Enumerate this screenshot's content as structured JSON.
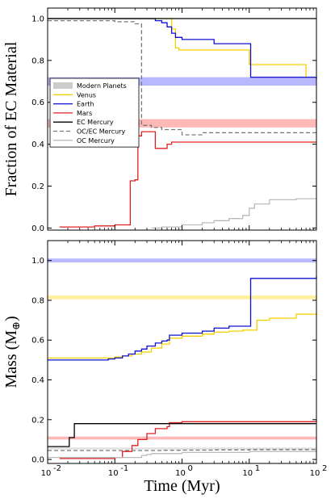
{
  "chart_data": [
    {
      "type": "line",
      "ylabel": "Fraction of EC Material",
      "xlabel": "",
      "xscale": "log",
      "xlim": [
        0.01,
        100
      ],
      "ylim": [
        -0.01,
        1.05
      ],
      "yticks": [
        "0.0",
        "0.2",
        "0.4",
        "0.6",
        "0.8",
        "1.0"
      ],
      "ytick_values": [
        0.0,
        0.2,
        0.4,
        0.6,
        0.8,
        1.0
      ],
      "legend_placement": "center-left",
      "legend": [
        {
          "label": "Modern Planets",
          "kind": "band",
          "color": "#cccccc"
        },
        {
          "label": "Venus",
          "kind": "line",
          "color": "#f5d000"
        },
        {
          "label": "Earth",
          "kind": "line",
          "color": "#1010d0"
        },
        {
          "label": "Mars",
          "kind": "line",
          "color": "#e02020"
        },
        {
          "label": "EC Mercury",
          "kind": "line",
          "color": "#000000"
        },
        {
          "label": "OC/EC Mercury",
          "kind": "dashed",
          "color": "#777777"
        },
        {
          "label": "OC Mercury",
          "kind": "line",
          "color": "#bbbbbb"
        }
      ],
      "bands": [
        {
          "name": "Earth",
          "y0": 0.68,
          "y1": 0.72,
          "color": "#b8b8ff"
        },
        {
          "name": "Mars",
          "y0": 0.48,
          "y1": 0.52,
          "color": "#ffb8b8"
        }
      ],
      "series": [
        {
          "name": "Venus",
          "color": "#f5d000",
          "style": "step",
          "x": [
            0.01,
            0.6,
            0.7,
            0.8,
            0.9,
            10,
            10,
            70,
            100
          ],
          "y": [
            1.0,
            1.0,
            0.95,
            0.86,
            0.85,
            0.85,
            0.78,
            0.72,
            0.72
          ]
        },
        {
          "name": "Earth",
          "color": "#1010d0",
          "style": "step",
          "x": [
            0.01,
            0.3,
            0.4,
            0.5,
            0.6,
            0.7,
            0.8,
            1,
            3,
            10,
            10.5,
            100
          ],
          "y": [
            1.0,
            1.0,
            0.99,
            0.98,
            0.96,
            0.93,
            0.91,
            0.9,
            0.88,
            0.88,
            0.72,
            0.71
          ]
        },
        {
          "name": "Mars",
          "color": "#e02020",
          "style": "step",
          "x": [
            0.015,
            0.05,
            0.1,
            0.16,
            0.17,
            0.2,
            0.22,
            0.25,
            0.35,
            0.4,
            0.5,
            0.6,
            0.7,
            1,
            2,
            5,
            100
          ],
          "y": [
            0.005,
            0.01,
            0.015,
            0.015,
            0.225,
            0.23,
            0.44,
            0.46,
            0.46,
            0.38,
            0.38,
            0.4,
            0.41,
            0.41,
            0.41,
            0.41,
            0.41
          ]
        },
        {
          "name": "EC Mercury",
          "color": "#000000",
          "style": "step",
          "x": [
            0.01,
            100
          ],
          "y": [
            1.0,
            1.0
          ]
        },
        {
          "name": "OC/EC Mercury",
          "color": "#777777",
          "style": "dashed",
          "x": [
            0.01,
            0.05,
            0.1,
            0.2,
            0.25,
            0.25,
            0.35,
            0.5,
            1,
            1.5,
            2,
            5,
            10,
            100
          ],
          "y": [
            0.99,
            0.99,
            0.985,
            0.975,
            0.97,
            0.49,
            0.48,
            0.47,
            0.445,
            0.445,
            0.455,
            0.455,
            0.455,
            0.455
          ]
        },
        {
          "name": "OC Mercury",
          "color": "#bbbbbb",
          "style": "step",
          "x": [
            0.35,
            0.5,
            1,
            2,
            3,
            5,
            8,
            10,
            12,
            20,
            50,
            100
          ],
          "y": [
            0.0,
            0.005,
            0.015,
            0.025,
            0.035,
            0.045,
            0.06,
            0.095,
            0.115,
            0.135,
            0.14,
            0.14
          ]
        }
      ]
    },
    {
      "type": "line",
      "ylabel": "Mass (M",
      "ylabel_symbol": "⊕",
      "xlabel": "Time (Myr)",
      "xscale": "log",
      "xlim": [
        0.01,
        100
      ],
      "ylim": [
        -0.02,
        1.1
      ],
      "yticks": [
        "0.0",
        "0.2",
        "0.4",
        "0.6",
        "0.8",
        "1.0"
      ],
      "ytick_values": [
        0.0,
        0.2,
        0.4,
        0.6,
        0.8,
        1.0
      ],
      "xticks": [
        "10",
        "10",
        "10",
        "10",
        "10"
      ],
      "xtick_exponents": [
        "-2",
        "-1",
        "0",
        "1",
        "2"
      ],
      "xtick_values": [
        0.01,
        0.1,
        1,
        10,
        100
      ],
      "bands": [
        {
          "name": "Earth",
          "y0": 0.99,
          "y1": 1.01,
          "color": "#b8b8ff"
        },
        {
          "name": "Venus",
          "y0": 0.805,
          "y1": 0.825,
          "color": "#fff0a0"
        },
        {
          "name": "Mars",
          "y0": 0.1,
          "y1": 0.115,
          "color": "#ffb8b8"
        },
        {
          "name": "Mercury",
          "y0": 0.05,
          "y1": 0.06,
          "color": "#e0e0e0"
        }
      ],
      "series": [
        {
          "name": "Venus",
          "color": "#f5d000",
          "style": "step",
          "x": [
            0.01,
            0.05,
            0.08,
            0.1,
            0.13,
            0.18,
            0.25,
            0.35,
            0.5,
            0.6,
            0.65,
            1,
            2,
            3,
            5,
            8,
            10,
            13,
            20,
            50,
            100
          ],
          "y": [
            0.51,
            0.51,
            0.51,
            0.515,
            0.52,
            0.53,
            0.54,
            0.56,
            0.58,
            0.58,
            0.61,
            0.62,
            0.63,
            0.64,
            0.645,
            0.65,
            0.65,
            0.7,
            0.71,
            0.73,
            0.74
          ]
        },
        {
          "name": "Earth",
          "color": "#1010d0",
          "style": "step",
          "x": [
            0.01,
            0.05,
            0.08,
            0.1,
            0.13,
            0.16,
            0.2,
            0.25,
            0.3,
            0.4,
            0.5,
            0.6,
            0.65,
            1,
            2,
            3,
            5,
            10,
            10.5,
            100
          ],
          "y": [
            0.5,
            0.5,
            0.505,
            0.51,
            0.52,
            0.53,
            0.545,
            0.555,
            0.57,
            0.585,
            0.595,
            0.6,
            0.625,
            0.635,
            0.645,
            0.66,
            0.67,
            0.67,
            0.91,
            0.92
          ]
        },
        {
          "name": "Mars",
          "color": "#e02020",
          "style": "step",
          "x": [
            0.015,
            0.1,
            0.13,
            0.18,
            0.22,
            0.3,
            0.4,
            0.6,
            0.65,
            1,
            100
          ],
          "y": [
            0.005,
            0.01,
            0.04,
            0.07,
            0.1,
            0.13,
            0.155,
            0.165,
            0.185,
            0.19,
            0.2
          ]
        },
        {
          "name": "EC Mercury",
          "color": "#000000",
          "style": "step",
          "x": [
            0.01,
            0.02,
            0.021,
            0.023,
            0.025,
            0.6,
            0.65,
            100
          ],
          "y": [
            0.065,
            0.065,
            0.11,
            0.11,
            0.18,
            0.18,
            0.18,
            0.18
          ]
        },
        {
          "name": "OC/EC Mercury",
          "color": "#777777",
          "style": "dashed",
          "x": [
            0.01,
            0.2,
            0.25,
            0.5,
            1,
            3,
            10,
            100
          ],
          "y": [
            0.045,
            0.045,
            0.045,
            0.046,
            0.047,
            0.048,
            0.05,
            0.052
          ]
        },
        {
          "name": "OC Mercury",
          "color": "#bbbbbb",
          "style": "step",
          "x": [
            0.01,
            0.2,
            0.25,
            0.3,
            0.35,
            1,
            10,
            100
          ],
          "y": [
            0.01,
            0.01,
            0.02,
            0.025,
            0.03,
            0.035,
            0.04,
            0.045
          ]
        }
      ]
    }
  ]
}
